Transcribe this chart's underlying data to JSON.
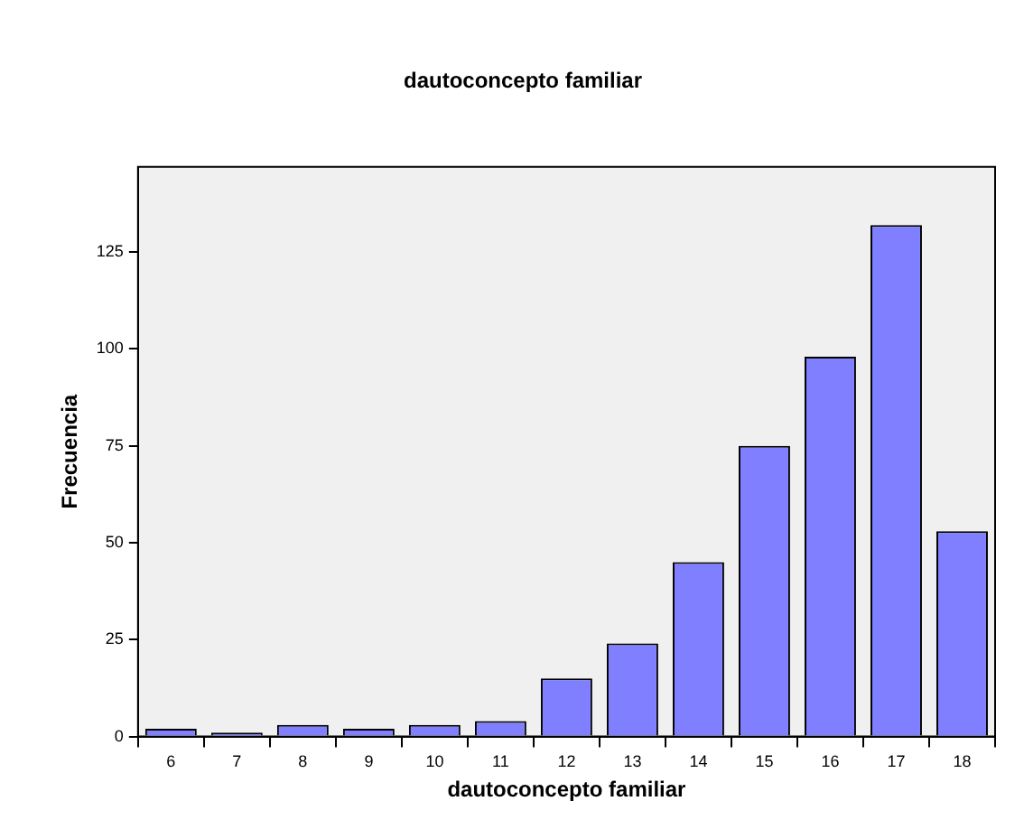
{
  "chart_data": {
    "type": "bar",
    "title": "dautoconcepto familiar",
    "xlabel": "dautoconcepto familiar",
    "ylabel": "Frecuencia",
    "categories": [
      "6",
      "7",
      "8",
      "9",
      "10",
      "11",
      "12",
      "13",
      "14",
      "15",
      "16",
      "17",
      "18"
    ],
    "values": [
      2,
      1,
      3,
      2,
      3,
      4,
      15,
      24,
      45,
      75,
      98,
      132,
      53
    ],
    "color": "#7f7fff",
    "ylim": [
      0,
      147
    ],
    "yticks": [
      0,
      25,
      50,
      75,
      100,
      125
    ],
    "grid": false,
    "legend": false
  }
}
